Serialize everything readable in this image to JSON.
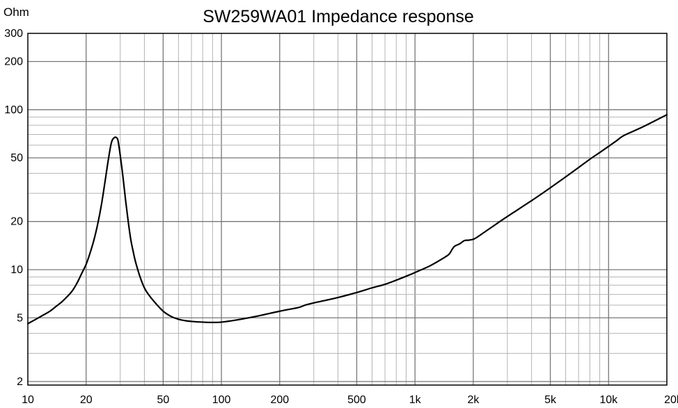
{
  "chart_data": {
    "type": "line",
    "title": "SW259WA01 Impedance response",
    "xlabel": "",
    "ylabel": "Ohm",
    "x_scale": "log",
    "y_scale": "log",
    "xlim": [
      10,
      20000
    ],
    "ylim": [
      1.9,
      300
    ],
    "grid": true,
    "legend": "none",
    "x_tick_labels": [
      "10",
      "20",
      "50",
      "100",
      "200",
      "500",
      "1k",
      "2k",
      "5k",
      "10k",
      "20k"
    ],
    "y_tick_labels": [
      "300",
      "200",
      "100",
      "50",
      "20",
      "10",
      "5",
      "2"
    ],
    "series": [
      {
        "name": "",
        "color": "#000000",
        "x": [
          10,
          11,
          12,
          13,
          14,
          15,
          16,
          17,
          18,
          19,
          20,
          21,
          22,
          23,
          24,
          25,
          26,
          27,
          28,
          29,
          29.5,
          30,
          31,
          32,
          33,
          34,
          35,
          36,
          38,
          40,
          42,
          45,
          50,
          55,
          60,
          65,
          70,
          80,
          90,
          100,
          120,
          150,
          200,
          250,
          270,
          300,
          400,
          500,
          600,
          700,
          800,
          900,
          1000,
          1200,
          1400,
          1500,
          1550,
          1600,
          1700,
          1800,
          1900,
          2000,
          2100,
          2500,
          3000,
          4000,
          5000,
          6000,
          7000,
          8000,
          9000,
          10000,
          11000,
          12000,
          15000,
          20000
        ],
        "y": [
          4.6,
          4.9,
          5.2,
          5.5,
          5.9,
          6.3,
          6.8,
          7.4,
          8.3,
          9.5,
          10.8,
          12.8,
          15.5,
          19.5,
          25.5,
          35,
          48,
          62,
          67,
          66,
          60,
          52,
          38,
          27,
          20,
          15.5,
          13,
          11.2,
          9,
          7.7,
          7,
          6.3,
          5.5,
          5.1,
          4.9,
          4.8,
          4.75,
          4.7,
          4.68,
          4.7,
          4.85,
          5.1,
          5.5,
          5.8,
          6,
          6.2,
          6.7,
          7.2,
          7.7,
          8.1,
          8.6,
          9.1,
          9.6,
          10.6,
          11.8,
          12.5,
          13.3,
          14,
          14.5,
          15.2,
          15.3,
          15.5,
          16,
          18.5,
          21.5,
          27,
          32.5,
          38,
          43.5,
          49,
          54,
          59,
          64,
          69,
          78,
          93
        ]
      }
    ]
  }
}
